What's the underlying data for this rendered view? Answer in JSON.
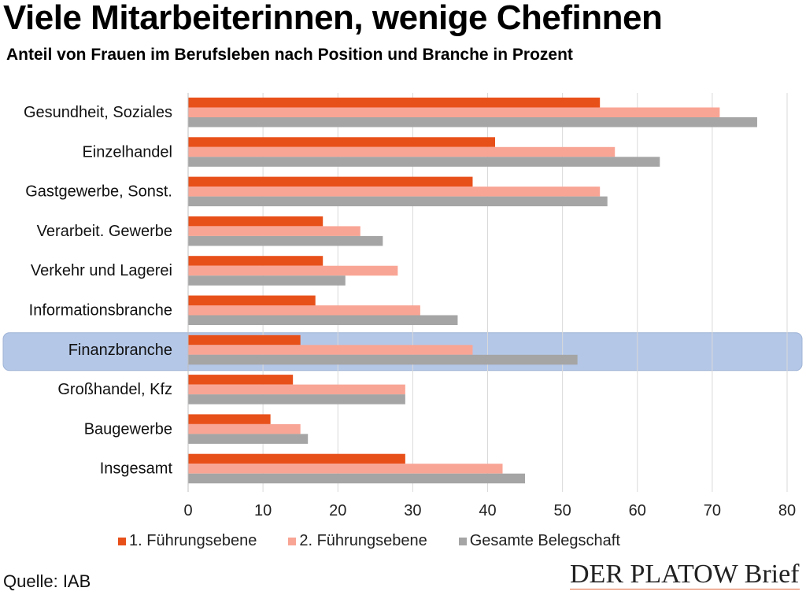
{
  "colors": {
    "s1": "#e8501a",
    "s2": "#f9a595",
    "s3": "#a5a5a5",
    "highlight": "#b4c7e7",
    "grid": "#d9d9d9"
  },
  "source": "Quelle: IAB",
  "brand": "DER PLATOW Brief",
  "chart_data": {
    "type": "bar",
    "orientation": "horizontal",
    "title": "Viele Mitarbeiterinnen, wenige Chefinnen",
    "subtitle": "Anteil von Frauen im Berufsleben nach Position und Branche in Prozent",
    "categories": [
      "Gesundheit, Soziales",
      "Einzelhandel",
      "Gastgewerbe, Sonst.",
      "Verarbeit. Gewerbe",
      "Verkehr und Lagerei",
      "Informationsbranche",
      "Finanzbranche",
      "Großhandel, Kfz",
      "Baugewerbe",
      "Insgesamt"
    ],
    "highlighted_category": "Finanzbranche",
    "series": [
      {
        "name": "1. Führungsebene",
        "values": [
          55,
          41,
          38,
          18,
          18,
          17,
          15,
          14,
          11,
          29
        ]
      },
      {
        "name": "2. Führungsebene",
        "values": [
          71,
          57,
          55,
          23,
          28,
          31,
          38,
          29,
          15,
          42
        ]
      },
      {
        "name": "Gesamte Belegschaft",
        "values": [
          76,
          63,
          56,
          26,
          21,
          36,
          52,
          29,
          16,
          45
        ]
      }
    ],
    "xlim": [
      0,
      80
    ],
    "xticks": [
      "0",
      "10",
      "20",
      "30",
      "40",
      "50",
      "60",
      "70",
      "80"
    ],
    "grid": true,
    "legend_position": "bottom"
  }
}
